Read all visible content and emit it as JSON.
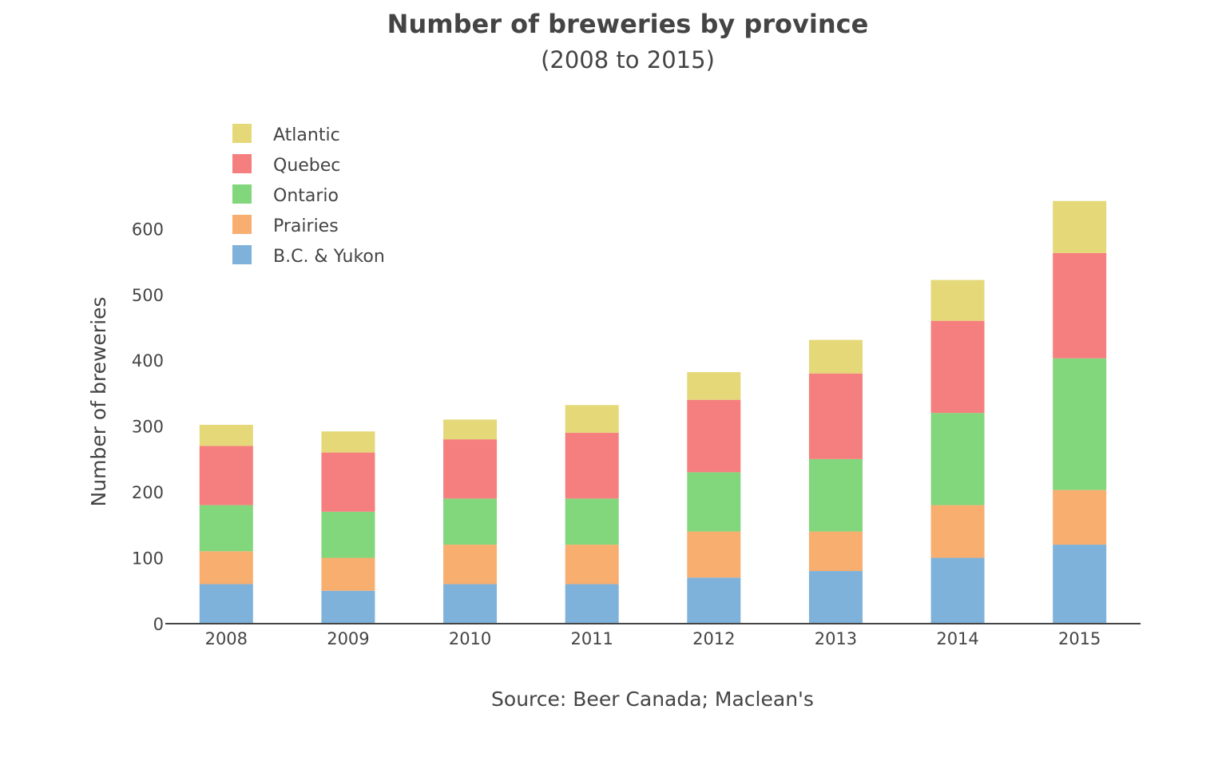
{
  "chart_data": {
    "type": "bar",
    "stacked": true,
    "title": "Number of breweries by province",
    "subtitle": "(2008 to 2015)",
    "xlabel": "Source: Beer Canada; Maclean's",
    "ylabel": "Number of breweries",
    "categories": [
      "2008",
      "2009",
      "2010",
      "2011",
      "2012",
      "2013",
      "2014",
      "2015"
    ],
    "ylim": [
      0,
      650
    ],
    "yticks": [
      0,
      100,
      200,
      300,
      400,
      500,
      600
    ],
    "ytick_labels": [
      "0",
      "100",
      "200",
      "300",
      "400",
      "500",
      "600"
    ],
    "grid": false,
    "legend_position": "top-left",
    "series": [
      {
        "name": "B.C. & Yukon",
        "color": "#7fb2da",
        "values": [
          60,
          50,
          60,
          60,
          70,
          80,
          100,
          120
        ]
      },
      {
        "name": "Prairies",
        "color": "#f8ae6f",
        "values": [
          50,
          50,
          60,
          60,
          70,
          60,
          80,
          83
        ]
      },
      {
        "name": "Ontario",
        "color": "#82d67c",
        "values": [
          70,
          70,
          70,
          70,
          90,
          110,
          140,
          200
        ]
      },
      {
        "name": "Quebec",
        "color": "#f47f7e",
        "values": [
          90,
          90,
          90,
          100,
          110,
          130,
          140,
          160
        ]
      },
      {
        "name": "Atlantic",
        "color": "#e4d878",
        "values": [
          32,
          32,
          30,
          42,
          42,
          51,
          62,
          79
        ]
      }
    ]
  }
}
